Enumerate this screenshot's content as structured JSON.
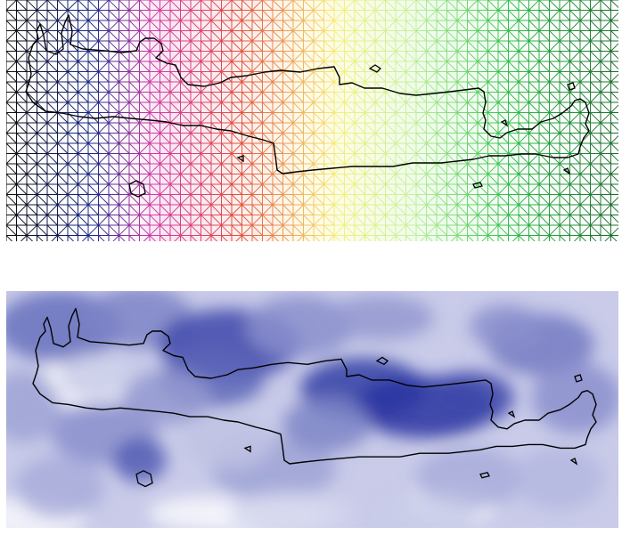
{
  "figure": {
    "panels": [
      {
        "id": "triangular-mesh-map",
        "kind": "triangulated grid coloured west-to-east",
        "gradient_stops": [
          "#0b0b0b",
          "#1a2a8a",
          "#d23aa6",
          "#e0503a",
          "#f7f07a",
          "#c8f0a0",
          "#31c14a",
          "#1a6b2e"
        ],
        "outline_color": "#000000"
      },
      {
        "id": "interpolated-surface-map",
        "kind": "continuous blue intensity surface",
        "low_color": "#f4f4fb",
        "high_color": "#1e2a9c",
        "outline_color": "#000000"
      }
    ]
  }
}
